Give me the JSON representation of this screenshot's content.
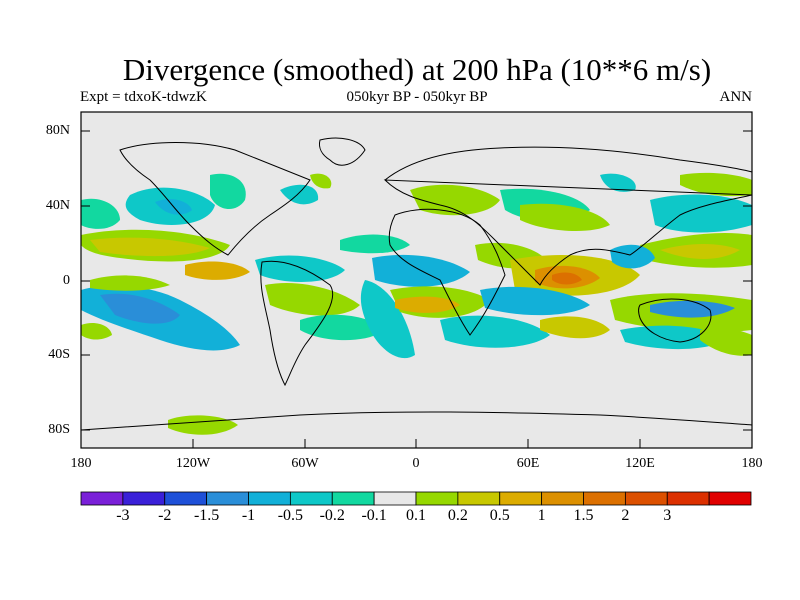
{
  "header": {
    "title": "Divergence (smoothed) at 200 hPa (10**6 m/s)",
    "left": "Expt = tdxoK-tdwzK",
    "center": "050kyr BP - 050kyr BP",
    "right": "ANN"
  },
  "axes": {
    "lat_labels": [
      "80N",
      "40N",
      "0",
      "40S",
      "80S"
    ],
    "lon_labels": [
      "180",
      "120W",
      "60W",
      "0",
      "60E",
      "120E",
      "180"
    ]
  },
  "colorbar": {
    "colors": [
      "#7a20d8",
      "#3a20d8",
      "#1e50d8",
      "#2a8ed8",
      "#12b0d8",
      "#0ec8c8",
      "#12d8a0",
      "#e8e8e8",
      "#96d800",
      "#c8c800",
      "#dcac00",
      "#dc9000",
      "#dc7000",
      "#dc5000",
      "#dc3000",
      "#e00000"
    ],
    "labels": [
      "-3",
      "-2",
      "-1.5",
      "-1",
      "-0.5",
      "-0.2",
      "-0.1",
      "0.1",
      "0.2",
      "0.5",
      "1",
      "1.5",
      "2",
      "3"
    ]
  }
}
